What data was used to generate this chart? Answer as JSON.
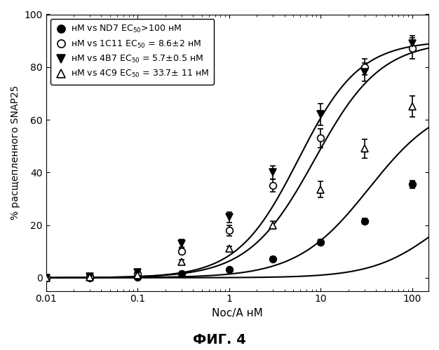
{
  "title": "ФИГ. 4",
  "xlabel": "Noc/A нМ",
  "ylabel": "% расщепленного SNAP25",
  "xlim_log": [
    -2,
    2.1
  ],
  "ylim": [
    -5,
    100
  ],
  "series": [
    {
      "name": "нМ vs ND7 EC₅₀>100 нМ",
      "EC50": 200,
      "top": 37,
      "Hill": 1.2,
      "marker": "o",
      "filled": true,
      "color": "black",
      "x_data": [
        0.01,
        0.03,
        0.1,
        0.3,
        1.0,
        3.0,
        10,
        30,
        100
      ],
      "y_data": [
        0.0,
        0.0,
        0.2,
        1.5,
        3.0,
        7.0,
        13.5,
        21.5,
        35.5
      ],
      "y_err": [
        0.0,
        0.0,
        0.2,
        0.5,
        0.5,
        0.8,
        1.0,
        1.0,
        1.5
      ]
    },
    {
      "name": "нМ vs 1C11 EC₅₀ = 8.6±2 нМ",
      "EC50": 8.6,
      "top": 90,
      "Hill": 1.2,
      "marker": "o",
      "filled": false,
      "color": "black",
      "x_data": [
        0.01,
        0.03,
        0.1,
        0.3,
        1.0,
        3.0,
        10,
        30,
        100
      ],
      "y_data": [
        0.0,
        0.5,
        1.5,
        10.0,
        18.0,
        35.0,
        53.0,
        80.0,
        87.0
      ],
      "y_err": [
        0.0,
        0.3,
        0.5,
        1.0,
        2.0,
        2.5,
        3.5,
        3.0,
        4.0
      ]
    },
    {
      "name": "нМ vs 4B7 EC₅₀ = 5.7±0.5 нМ",
      "EC50": 5.7,
      "top": 90,
      "Hill": 1.3,
      "marker": "v",
      "filled": true,
      "color": "black",
      "x_data": [
        0.01,
        0.03,
        0.1,
        0.3,
        1.0,
        3.0,
        10,
        30,
        100
      ],
      "y_data": [
        0.0,
        0.5,
        2.0,
        13.0,
        23.0,
        40.0,
        62.0,
        78.0,
        89.0
      ],
      "y_err": [
        0.0,
        0.3,
        0.5,
        1.5,
        2.0,
        2.5,
        4.0,
        3.5,
        3.0
      ]
    },
    {
      "name": "нМ vs 4C9 EC₅₀ = 33.7± 11 нМ",
      "EC50": 33.7,
      "top": 68,
      "Hill": 1.1,
      "marker": "^",
      "filled": false,
      "color": "black",
      "x_data": [
        0.01,
        0.03,
        0.1,
        0.3,
        1.0,
        3.0,
        10,
        30,
        100
      ],
      "y_data": [
        0.0,
        0.3,
        1.0,
        6.0,
        11.0,
        20.0,
        33.5,
        49.0,
        65.0
      ],
      "y_err": [
        0.0,
        0.2,
        0.4,
        0.8,
        1.0,
        1.5,
        3.0,
        3.5,
        4.0
      ]
    }
  ],
  "legend_labels": [
    "нМ vs ND7 EC₅₀>100 нМ",
    "нМ vs 1C11 EC₅₀ = 8.6±2 нМ",
    "нМ vs 4B7 EC₅₀ = 5.7±0.5 нМ",
    "нМ vs 4C9 EC₅₀ = 33.7± 11 нМ"
  ]
}
